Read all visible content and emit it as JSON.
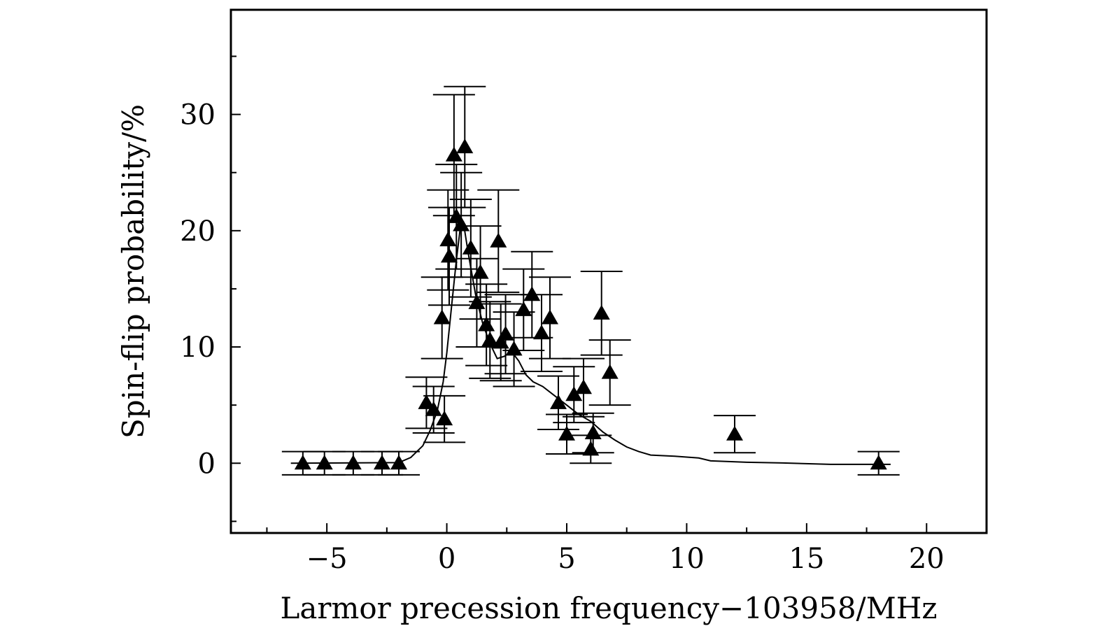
{
  "chart_data": {
    "type": "scatter",
    "title": "",
    "xlabel": "Larmor precession frequency−103958/MHz",
    "ylabel": "Spin-flip probability/%",
    "xlim": [
      -9,
      22.5
    ],
    "ylim": [
      -6,
      39
    ],
    "x_ticks": [
      -5,
      0,
      5,
      10,
      15,
      20
    ],
    "x_tick_labels": [
      "−5",
      "0",
      "5",
      "10",
      "15",
      "20"
    ],
    "x_minor_ticks": [
      -7.5,
      -2.5,
      2.5,
      7.5,
      12.5,
      17.5
    ],
    "y_ticks": [
      0,
      10,
      20,
      30
    ],
    "y_tick_labels": [
      "0",
      "10",
      "20",
      "30"
    ],
    "y_minor_ticks": [
      -5,
      5,
      15,
      25,
      35
    ],
    "grid": false,
    "legend": "none",
    "marker": "filled-triangle",
    "points": [
      {
        "x": -6.0,
        "y": 0.0,
        "yerr": 1.0
      },
      {
        "x": -5.1,
        "y": 0.0,
        "yerr": 1.0
      },
      {
        "x": -3.9,
        "y": 0.0,
        "yerr": 1.0
      },
      {
        "x": -2.7,
        "y": 0.0,
        "yerr": 1.0
      },
      {
        "x": -2.0,
        "y": 0.0,
        "yerr": 1.0
      },
      {
        "x": -0.85,
        "y": 5.2,
        "yerr": 2.2
      },
      {
        "x": -0.55,
        "y": 4.6,
        "yerr": 2.0
      },
      {
        "x": -0.1,
        "y": 3.8,
        "yerr": 2.0
      },
      {
        "x": -0.2,
        "y": 12.5,
        "yerr": 3.5
      },
      {
        "x": 0.05,
        "y": 19.2,
        "yerr": 4.3
      },
      {
        "x": 0.1,
        "y": 17.8,
        "yerr": 4.2
      },
      {
        "x": 0.3,
        "y": 26.5,
        "yerr": 5.2
      },
      {
        "x": 0.4,
        "y": 21.2,
        "yerr": 4.5
      },
      {
        "x": 0.6,
        "y": 20.5,
        "yerr": 4.5
      },
      {
        "x": 0.75,
        "y": 27.2,
        "yerr": 5.2
      },
      {
        "x": 1.0,
        "y": 18.5,
        "yerr": 4.2
      },
      {
        "x": 1.25,
        "y": 13.8,
        "yerr": 3.8
      },
      {
        "x": 1.4,
        "y": 16.4,
        "yerr": 4.0
      },
      {
        "x": 1.65,
        "y": 11.9,
        "yerr": 3.5
      },
      {
        "x": 1.8,
        "y": 10.6,
        "yerr": 3.3
      },
      {
        "x": 2.15,
        "y": 19.1,
        "yerr": 4.4
      },
      {
        "x": 2.25,
        "y": 10.4,
        "yerr": 3.3
      },
      {
        "x": 2.45,
        "y": 11.1,
        "yerr": 3.4
      },
      {
        "x": 2.8,
        "y": 9.8,
        "yerr": 3.2
      },
      {
        "x": 3.2,
        "y": 13.2,
        "yerr": 3.5
      },
      {
        "x": 3.55,
        "y": 14.5,
        "yerr": 3.7
      },
      {
        "x": 3.95,
        "y": 11.2,
        "yerr": 3.3
      },
      {
        "x": 4.3,
        "y": 12.5,
        "yerr": 3.5
      },
      {
        "x": 4.65,
        "y": 5.2,
        "yerr": 2.3
      },
      {
        "x": 5.0,
        "y": 2.5,
        "yerr": 1.7
      },
      {
        "x": 5.3,
        "y": 5.9,
        "yerr": 2.4
      },
      {
        "x": 5.7,
        "y": 6.5,
        "yerr": 2.5
      },
      {
        "x": 6.0,
        "y": 1.2,
        "yerr": 1.2
      },
      {
        "x": 6.1,
        "y": 2.6,
        "yerr": 1.7
      },
      {
        "x": 6.45,
        "y": 12.9,
        "yerr": 3.6
      },
      {
        "x": 6.8,
        "y": 7.8,
        "yerr": 2.8
      },
      {
        "x": 12.0,
        "y": 2.5,
        "yerr": 1.6
      },
      {
        "x": 18.0,
        "y": 0.0,
        "yerr": 1.0
      }
    ],
    "fit_curve": {
      "x": [
        -6.5,
        -2.0,
        -1.5,
        -1.0,
        -0.7,
        -0.4,
        -0.15,
        0.0,
        0.2,
        0.4,
        0.55,
        0.7,
        0.9,
        1.2,
        1.5,
        1.8,
        2.1,
        2.4,
        2.7,
        3.0,
        3.3,
        3.6,
        4.0,
        4.5,
        5.0,
        5.5,
        6.0,
        6.5,
        7.0,
        7.5,
        8.0,
        8.5,
        9.5,
        10.5,
        11.0,
        12.5,
        14.0,
        16.0,
        18.5
      ],
      "y": [
        0.0,
        0.05,
        0.5,
        1.5,
        2.8,
        4.5,
        7.0,
        9.5,
        13.5,
        17.5,
        20.0,
        20.6,
        18.0,
        14.5,
        12.0,
        10.3,
        9.0,
        9.2,
        9.6,
        8.8,
        7.6,
        7.0,
        6.6,
        5.8,
        5.0,
        4.2,
        3.6,
        2.7,
        2.0,
        1.4,
        1.0,
        0.7,
        0.6,
        0.45,
        0.2,
        0.08,
        0.02,
        -0.1,
        -0.1
      ]
    }
  }
}
